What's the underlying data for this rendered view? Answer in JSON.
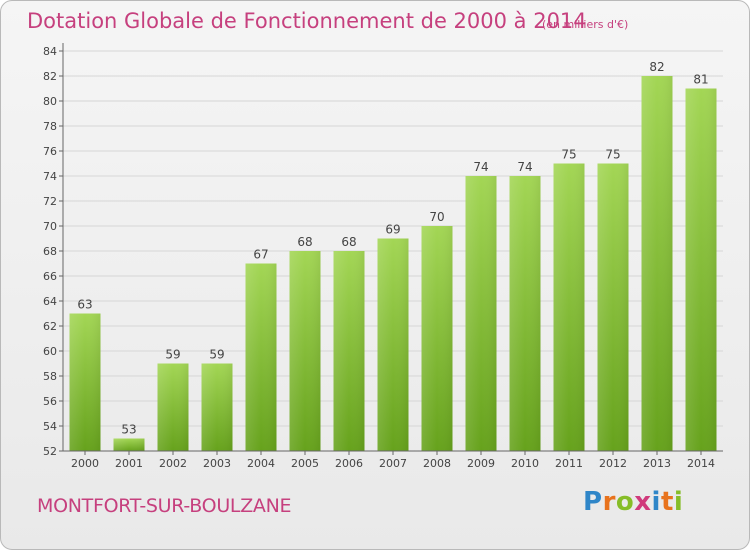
{
  "chart_data": {
    "type": "bar",
    "title": "Dotation Globale de Fonctionnement de 2000 à 2014",
    "subtitle": "(en milliers d'€)",
    "categories": [
      "2000",
      "2001",
      "2002",
      "2003",
      "2004",
      "2005",
      "2006",
      "2007",
      "2008",
      "2009",
      "2010",
      "2011",
      "2012",
      "2013",
      "2014"
    ],
    "values": [
      63,
      53,
      59,
      59,
      67,
      68,
      68,
      69,
      70,
      74,
      74,
      75,
      75,
      82,
      81
    ],
    "ylim": [
      52,
      84
    ],
    "yticks": [
      52,
      54,
      56,
      58,
      60,
      62,
      64,
      66,
      68,
      70,
      72,
      74,
      76,
      78,
      80,
      82,
      84
    ],
    "grid": true,
    "bar_color": "#7cb931"
  },
  "footer": {
    "town": "MONTFORT-SUR-BOULZANE"
  },
  "logo": {
    "text": "Proxiti",
    "letters": [
      "P",
      "r",
      "o",
      "x",
      "i",
      "t",
      "i"
    ]
  },
  "colors": {
    "accent": "#c6407e",
    "bar_light": "#a3d655",
    "bar_dark": "#66a21c"
  }
}
